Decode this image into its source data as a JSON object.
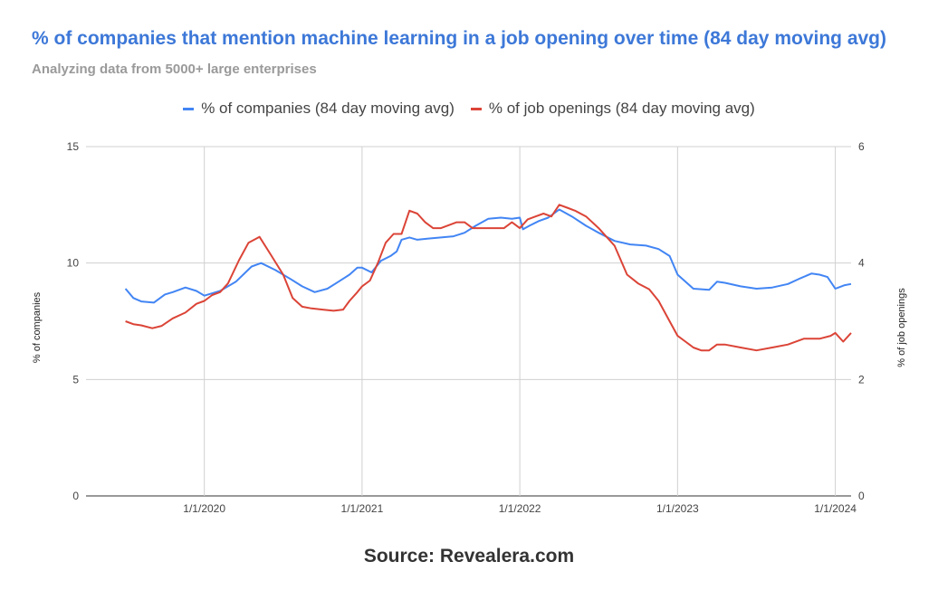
{
  "chart_data": {
    "type": "line",
    "title": "% of companies that mention machine learning in a job opening over time (84 day moving avg)",
    "subtitle": "Analyzing data from 5000+ large enterprises",
    "xlabel": "",
    "ylabel_left": "% of companies",
    "ylabel_right": "% of job openings",
    "x_tick_labels": [
      "1/1/2020",
      "1/1/2021",
      "1/1/2022",
      "1/1/2023",
      "1/1/2024"
    ],
    "x_tick_dates": [
      2020.0,
      2021.0,
      2022.0,
      2023.0,
      2024.0
    ],
    "xlim": [
      2019.25,
      2024.1
    ],
    "ylim_left": [
      0,
      15
    ],
    "ylim_right": [
      0,
      6
    ],
    "y_ticks_left": [
      "0",
      "5",
      "10",
      "15"
    ],
    "y_ticks_right": [
      "0",
      "2",
      "4",
      "6"
    ],
    "grid": true,
    "legend_position": "top",
    "series": [
      {
        "name": "% of companies (84 day moving avg)",
        "axis": "left",
        "color": "#4285f4",
        "x": [
          2019.5,
          2019.55,
          2019.6,
          2019.68,
          2019.75,
          2019.8,
          2019.88,
          2019.95,
          2020.0,
          2020.05,
          2020.1,
          2020.2,
          2020.3,
          2020.36,
          2020.45,
          2020.55,
          2020.62,
          2020.7,
          2020.78,
          2020.85,
          2020.92,
          2020.97,
          2021.0,
          2021.06,
          2021.12,
          2021.18,
          2021.22,
          2021.25,
          2021.3,
          2021.35,
          2021.42,
          2021.5,
          2021.58,
          2021.65,
          2021.72,
          2021.8,
          2021.88,
          2021.95,
          2022.0,
          2022.02,
          2022.06,
          2022.12,
          2022.18,
          2022.25,
          2022.33,
          2022.42,
          2022.5,
          2022.6,
          2022.7,
          2022.8,
          2022.88,
          2022.95,
          2023.0,
          2023.05,
          2023.1,
          2023.2,
          2023.25,
          2023.3,
          2023.4,
          2023.5,
          2023.6,
          2023.7,
          2023.78,
          2023.85,
          2023.9,
          2023.95,
          2024.0,
          2024.02,
          2024.06,
          2024.1
        ],
        "values": [
          8.9,
          8.5,
          8.35,
          8.3,
          8.65,
          8.75,
          8.95,
          8.8,
          8.6,
          8.7,
          8.8,
          9.2,
          9.85,
          10.0,
          9.7,
          9.3,
          9.0,
          8.75,
          8.9,
          9.2,
          9.5,
          9.8,
          9.8,
          9.6,
          10.1,
          10.3,
          10.5,
          11.0,
          11.1,
          11.0,
          11.05,
          11.1,
          11.15,
          11.3,
          11.6,
          11.9,
          11.95,
          11.9,
          11.95,
          11.45,
          11.6,
          11.8,
          11.95,
          12.3,
          12.0,
          11.6,
          11.3,
          10.95,
          10.8,
          10.75,
          10.6,
          10.3,
          9.5,
          9.2,
          8.9,
          8.85,
          9.2,
          9.15,
          9.0,
          8.9,
          8.95,
          9.1,
          9.35,
          9.55,
          9.5,
          9.4,
          8.9,
          8.95,
          9.05,
          9.1
        ]
      },
      {
        "name": "% of job openings (84 day moving avg)",
        "axis": "right",
        "color": "#db4437",
        "x": [
          2019.5,
          2019.55,
          2019.6,
          2019.67,
          2019.73,
          2019.8,
          2019.88,
          2019.95,
          2020.0,
          2020.05,
          2020.1,
          2020.15,
          2020.22,
          2020.28,
          2020.35,
          2020.42,
          2020.5,
          2020.56,
          2020.62,
          2020.68,
          2020.75,
          2020.82,
          2020.88,
          2020.92,
          2020.97,
          2021.0,
          2021.05,
          2021.1,
          2021.15,
          2021.2,
          2021.25,
          2021.3,
          2021.35,
          2021.4,
          2021.45,
          2021.5,
          2021.55,
          2021.6,
          2021.65,
          2021.7,
          2021.75,
          2021.8,
          2021.85,
          2021.9,
          2021.95,
          2022.0,
          2022.05,
          2022.1,
          2022.15,
          2022.2,
          2022.25,
          2022.3,
          2022.35,
          2022.42,
          2022.5,
          2022.6,
          2022.68,
          2022.75,
          2022.82,
          2022.88,
          2022.95,
          2023.0,
          2023.05,
          2023.1,
          2023.15,
          2023.2,
          2023.25,
          2023.3,
          2023.4,
          2023.5,
          2023.6,
          2023.7,
          2023.8,
          2023.9,
          2023.97,
          2024.0,
          2024.05,
          2024.1
        ],
        "values": [
          3.0,
          2.95,
          2.93,
          2.88,
          2.92,
          3.05,
          3.15,
          3.3,
          3.35,
          3.45,
          3.5,
          3.65,
          4.05,
          4.35,
          4.45,
          4.15,
          3.8,
          3.4,
          3.25,
          3.22,
          3.2,
          3.18,
          3.2,
          3.35,
          3.5,
          3.6,
          3.7,
          4.0,
          4.35,
          4.5,
          4.5,
          4.9,
          4.85,
          4.7,
          4.6,
          4.6,
          4.65,
          4.7,
          4.7,
          4.6,
          4.6,
          4.6,
          4.6,
          4.6,
          4.7,
          4.6,
          4.75,
          4.8,
          4.85,
          4.8,
          5.0,
          4.95,
          4.9,
          4.8,
          4.6,
          4.3,
          3.8,
          3.65,
          3.55,
          3.35,
          3.0,
          2.75,
          2.65,
          2.55,
          2.5,
          2.5,
          2.6,
          2.6,
          2.55,
          2.5,
          2.55,
          2.6,
          2.7,
          2.7,
          2.75,
          2.8,
          2.65,
          2.8
        ]
      }
    ]
  },
  "source_text": "Source: Revealera.com"
}
